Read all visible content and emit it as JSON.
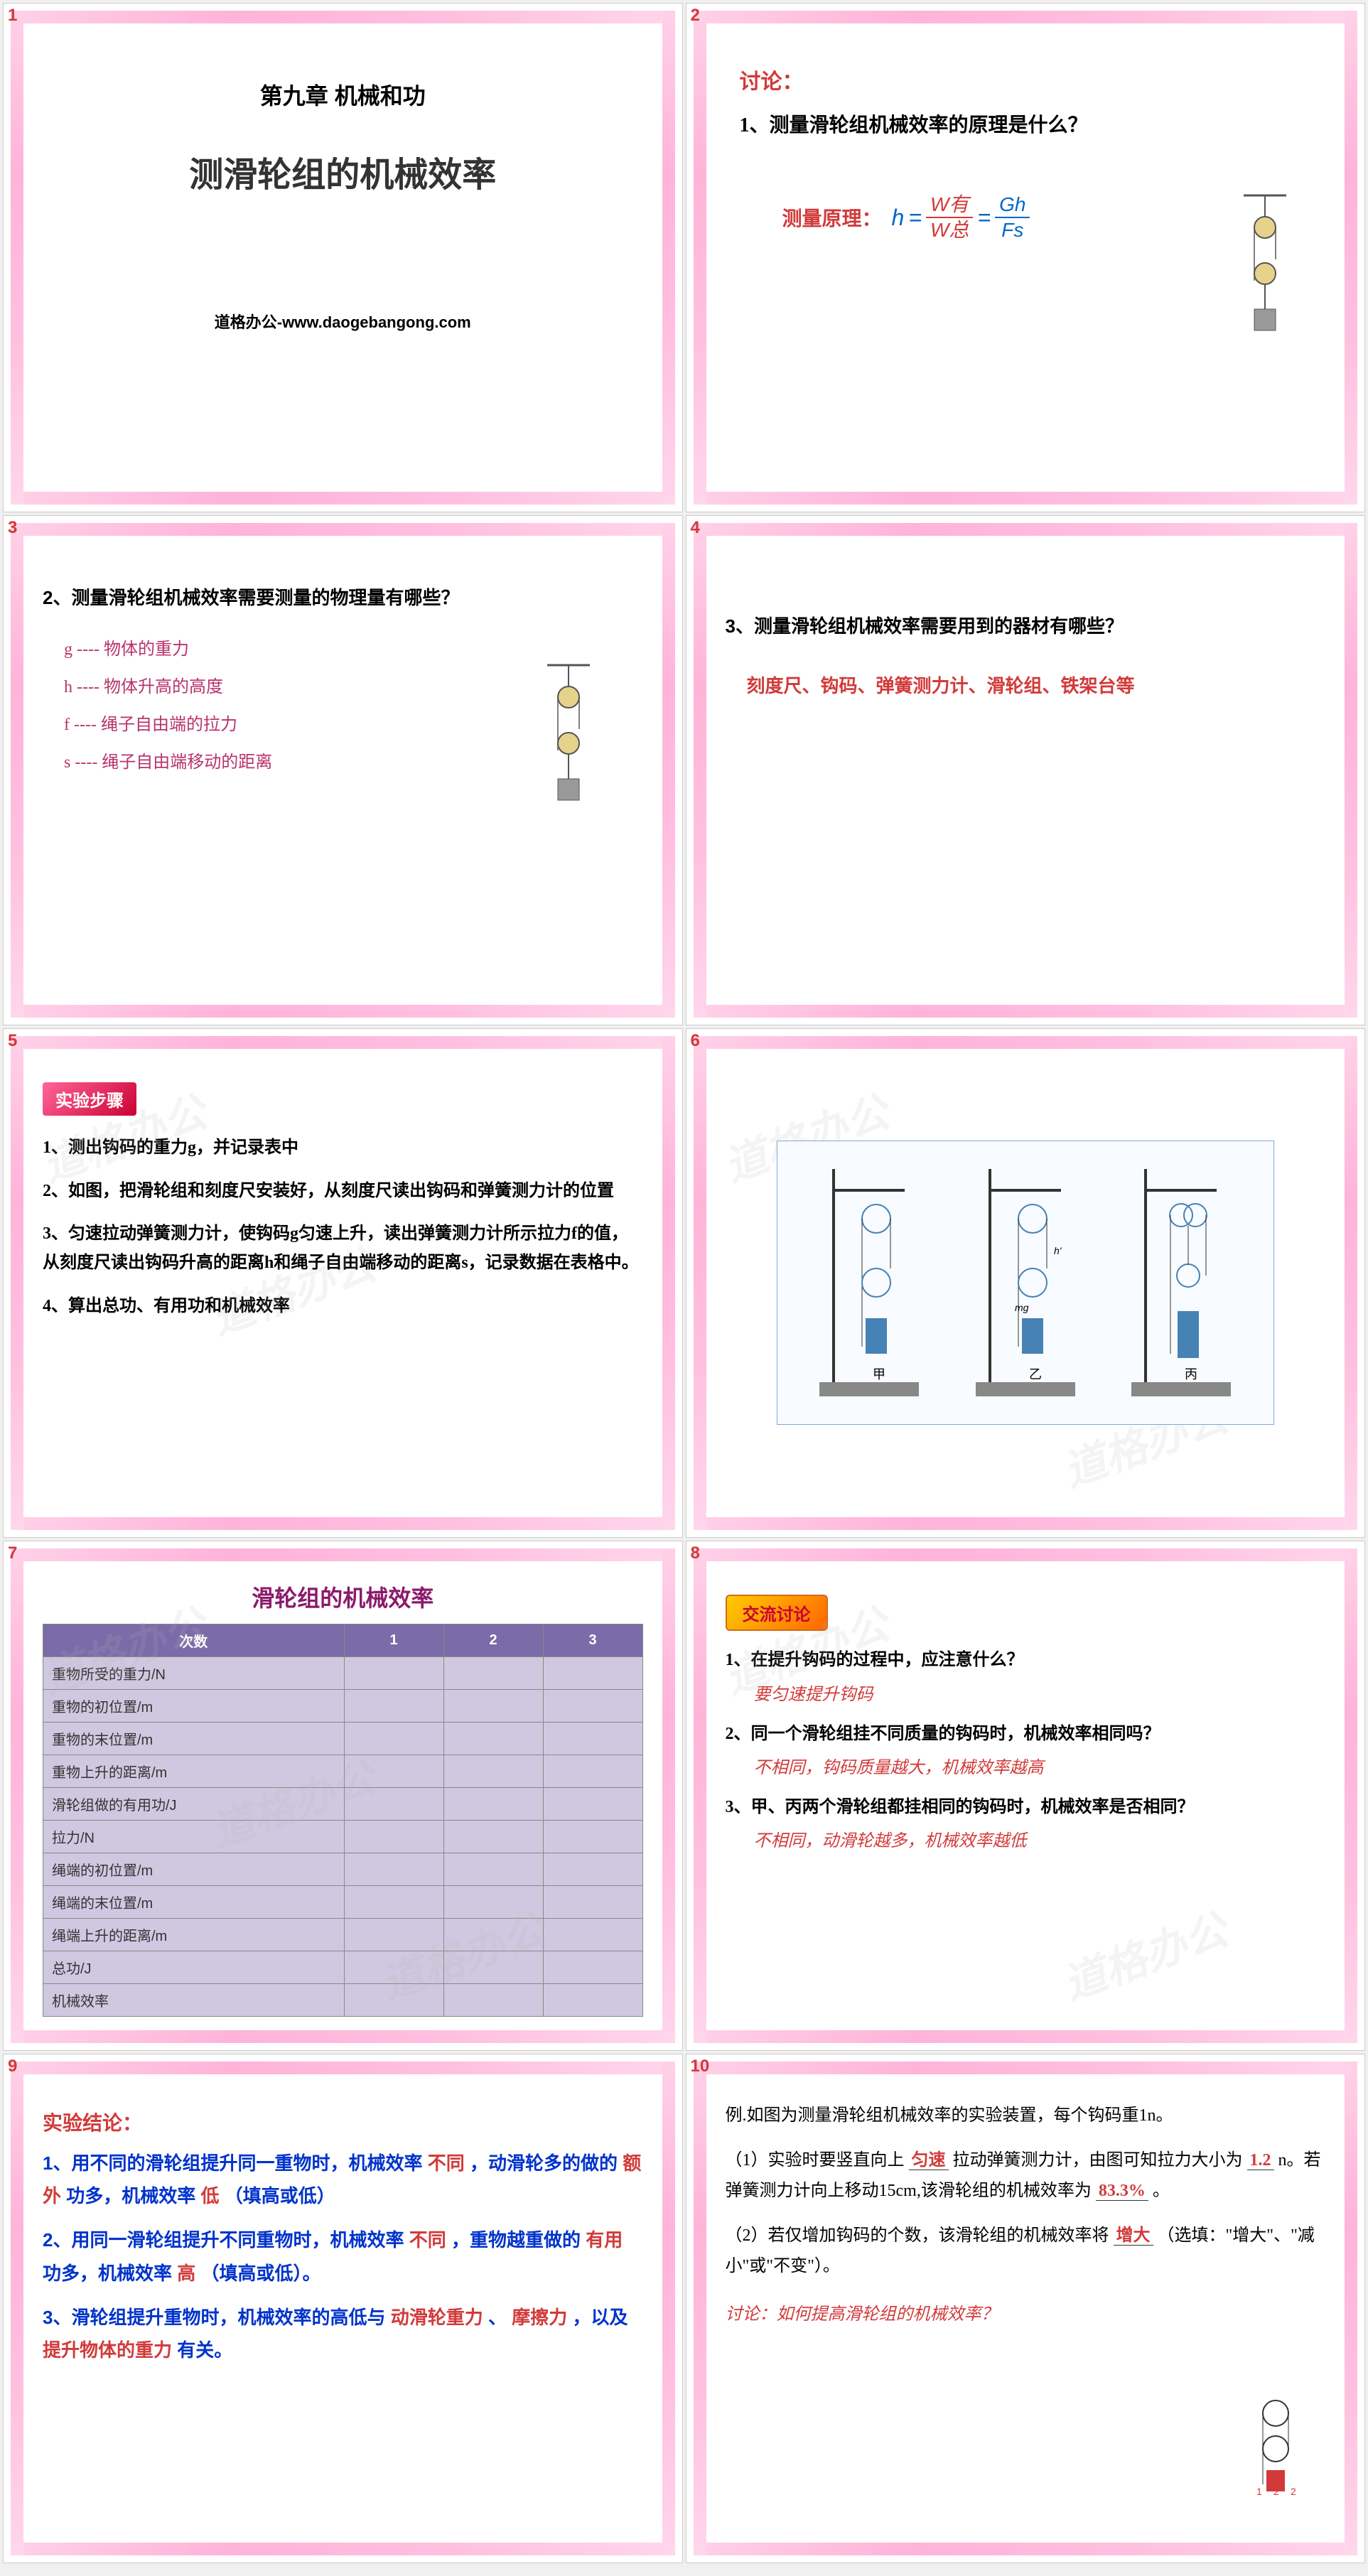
{
  "watermark": "道格办公",
  "slides": {
    "s1": {
      "num": "1",
      "chapter": "第九章 机械和功",
      "title": "测滑轮组的机械效率",
      "footer": "道格办公-www.daogebangong.com"
    },
    "s2": {
      "num": "2",
      "discuss": "讨论：",
      "question": "1、测量滑轮组机械效率的原理是什么？",
      "formula_label": "测量原理：",
      "h": "h",
      "eq": "=",
      "w_you": "W有",
      "w_zong": "W总",
      "gh": "Gh",
      "fs": "Fs"
    },
    "s3": {
      "num": "3",
      "question": "2、测量滑轮组机械效率需要测量的物理量有哪些？",
      "items": [
        "g ---- 物体的重力",
        "h ---- 物体升高的高度",
        "f ---- 绳子自由端的拉力",
        "s ---- 绳子自由端移动的距离"
      ]
    },
    "s4": {
      "num": "4",
      "question": "3、测量滑轮组机械效率需要用到的器材有哪些？",
      "answer": "刻度尺、钩码、弹簧测力计、滑轮组、铁架台等"
    },
    "s5": {
      "num": "5",
      "tag": "实验步骤",
      "items": [
        "1、测出钩码的重力g，并记录表中",
        "2、如图，把滑轮组和刻度尺安装好，从刻度尺读出钩码和弹簧测力计的位置",
        "3、匀速拉动弹簧测力计，使钩码g匀速上升，读出弹簧测力计所示拉力f的值，从刻度尺读出钩码升高的距离h和绳子自由端移动的距离s，记录数据在表格中。",
        "4、算出总功、有用功和机械效率"
      ]
    },
    "s6": {
      "num": "6",
      "labels": [
        "甲",
        "乙",
        "丙"
      ]
    },
    "s7": {
      "num": "7",
      "title": "滑轮组的机械效率",
      "header_col0": "次数",
      "header_cols": [
        "1",
        "2",
        "3"
      ],
      "rows": [
        "重物所受的重力/N",
        "重物的初位置/m",
        "重物的末位置/m",
        "重物上升的距离/m",
        "滑轮组做的有用功/J",
        "拉力/N",
        "绳端的初位置/m",
        "绳端的末位置/m",
        "绳端上升的距离/m",
        "总功/J",
        "机械效率"
      ]
    },
    "s8": {
      "num": "8",
      "tag": "交流讨论",
      "blocks": [
        {
          "q": "1、在提升钩码的过程中，应注意什么？",
          "a": "要匀速提升钩码"
        },
        {
          "q": "2、同一个滑轮组挂不同质量的钩码时，机械效率相同吗？",
          "a": "不相同，钩码质量越大，机械效率越高"
        },
        {
          "q": "3、甲、丙两个滑轮组都挂相同的钩码时，机械效率是否相同？",
          "a": "不相同，动滑轮越多，机械效率越低"
        }
      ]
    },
    "s9": {
      "num": "9",
      "title": "实验结论：",
      "p1_a": "1、用不同的滑轮组提升同一重物时，机械效率",
      "p1_b": "不同",
      "p1_c": "，动滑轮多的做的",
      "p1_d": "额外",
      "p1_e": "功多，机械效率",
      "p1_f": "低",
      "p1_g": "（填高或低）",
      "p2_a": "2、用同一滑轮组提升不同重物时，机械效率",
      "p2_b": "不同",
      "p2_c": "，重物越重做的",
      "p2_d": "有用",
      "p2_e": "功多，机械效率",
      "p2_f": "高",
      "p2_g": "（填高或低）。",
      "p3_a": "3、滑轮组提升重物时，机械效率的高低与",
      "p3_b": "动滑轮重力",
      "p3_c": "、",
      "p3_d": "摩擦力",
      "p3_e": "，以及",
      "p3_f": "提升物体的重力",
      "p3_g": " 有关。"
    },
    "s10": {
      "num": "10",
      "intro": "例.如图为测量滑轮组机械效率的实验装置，每个钩码重1n。",
      "p1_a": "（1）实验时要竖直向上",
      "p1_b": "匀速",
      "p1_c": "拉动弹簧测力计，由图可知拉力大小为",
      "p1_d": "1.2",
      "p1_e": "n。若弹簧测力计向上移动15cm,该滑轮组的机械效率为",
      "p1_f": "83.3%",
      "p1_g": "。",
      "p2_a": "（2）若仅增加钩码的个数，该滑轮组的机械效率将",
      "p2_b": "增大",
      "p2_c": "（选填：\"增大\"、\"减小\"或\"不变\"）。",
      "discuss": "讨论：如何提高滑轮组的机械效率？",
      "fig_labels": [
        "1",
        "2",
        "2"
      ]
    }
  },
  "colors": {
    "red": "#d23a3a",
    "blue": "#0033cc",
    "purple": "#8b1a6b",
    "pink_border": "#ffb3d9",
    "table_bg": "#d0c8e0",
    "table_header": "#7b6ba8"
  }
}
